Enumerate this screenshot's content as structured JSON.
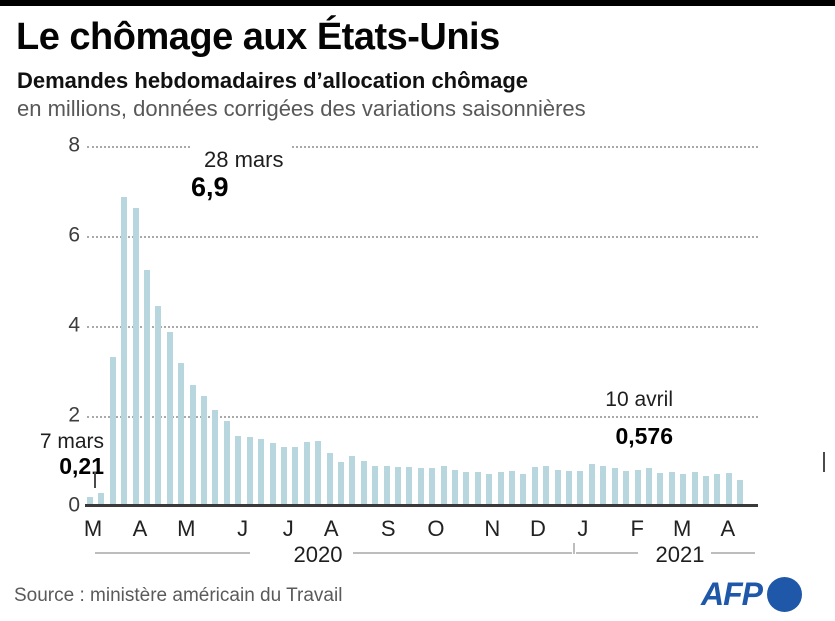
{
  "header": {
    "title": "Le chômage aux États-Unis",
    "subtitle": "Demandes hebdomadaires d’allocation chômage",
    "unit_note": "en millions, données corrigées des variations saisonnières"
  },
  "chart_data": {
    "type": "bar",
    "title": "Demandes hebdomadaires d’allocation chômage",
    "ylabel": "en millions",
    "xlabel": "",
    "ylim": [
      0,
      8
    ],
    "yticks": [
      8,
      6,
      4,
      2,
      0
    ],
    "grid": "horizontal-dotted",
    "bar_color": "#b8d6dd",
    "month_labels": [
      {
        "label": "M",
        "pos": 0.9
      },
      {
        "label": "A",
        "pos": 7.9
      },
      {
        "label": "M",
        "pos": 14.8
      },
      {
        "label": "J",
        "pos": 23.2
      },
      {
        "label": "J",
        "pos": 30.0
      },
      {
        "label": "A",
        "pos": 36.4
      },
      {
        "label": "S",
        "pos": 44.9
      },
      {
        "label": "O",
        "pos": 52.0
      },
      {
        "label": "N",
        "pos": 60.4
      },
      {
        "label": "D",
        "pos": 67.2
      },
      {
        "label": "J",
        "pos": 73.9
      },
      {
        "label": "F",
        "pos": 82.0
      },
      {
        "label": "M",
        "pos": 88.7
      },
      {
        "label": "A",
        "pos": 95.5
      }
    ],
    "values": [
      0.211,
      0.282,
      3.307,
      6.867,
      6.615,
      5.237,
      4.442,
      3.867,
      3.176,
      2.687,
      2.446,
      2.123,
      1.897,
      1.566,
      1.54,
      1.482,
      1.408,
      1.31,
      1.308,
      1.422,
      1.435,
      1.186,
      0.971,
      1.104,
      1.011,
      0.884,
      0.893,
      0.866,
      0.873,
      0.849,
      0.845,
      0.898,
      0.791,
      0.758,
      0.757,
      0.711,
      0.748,
      0.787,
      0.716,
      0.862,
      0.892,
      0.806,
      0.782,
      0.784,
      0.926,
      0.886,
      0.836,
      0.779,
      0.793,
      0.841,
      0.73,
      0.745,
      0.712,
      0.765,
      0.658,
      0.719,
      0.744,
      0.576
    ],
    "annotations": {
      "peak": {
        "date": "28 mars",
        "value_label": "6,9",
        "value": 6.9
      },
      "first": {
        "date": "7 mars",
        "value_label": "0,21",
        "value": 0.21
      },
      "last": {
        "date": "10 avril",
        "value_label": "0,576",
        "value": 0.576
      }
    },
    "years": [
      {
        "label": "2020"
      },
      {
        "label": "2021"
      }
    ]
  },
  "footer": {
    "source": "Source : ministère américain du Travail",
    "logo_text": "AFP"
  },
  "colors": {
    "bar": "#b8d6dd",
    "afp_blue": "#1f58a8",
    "topbar": "#000000"
  }
}
